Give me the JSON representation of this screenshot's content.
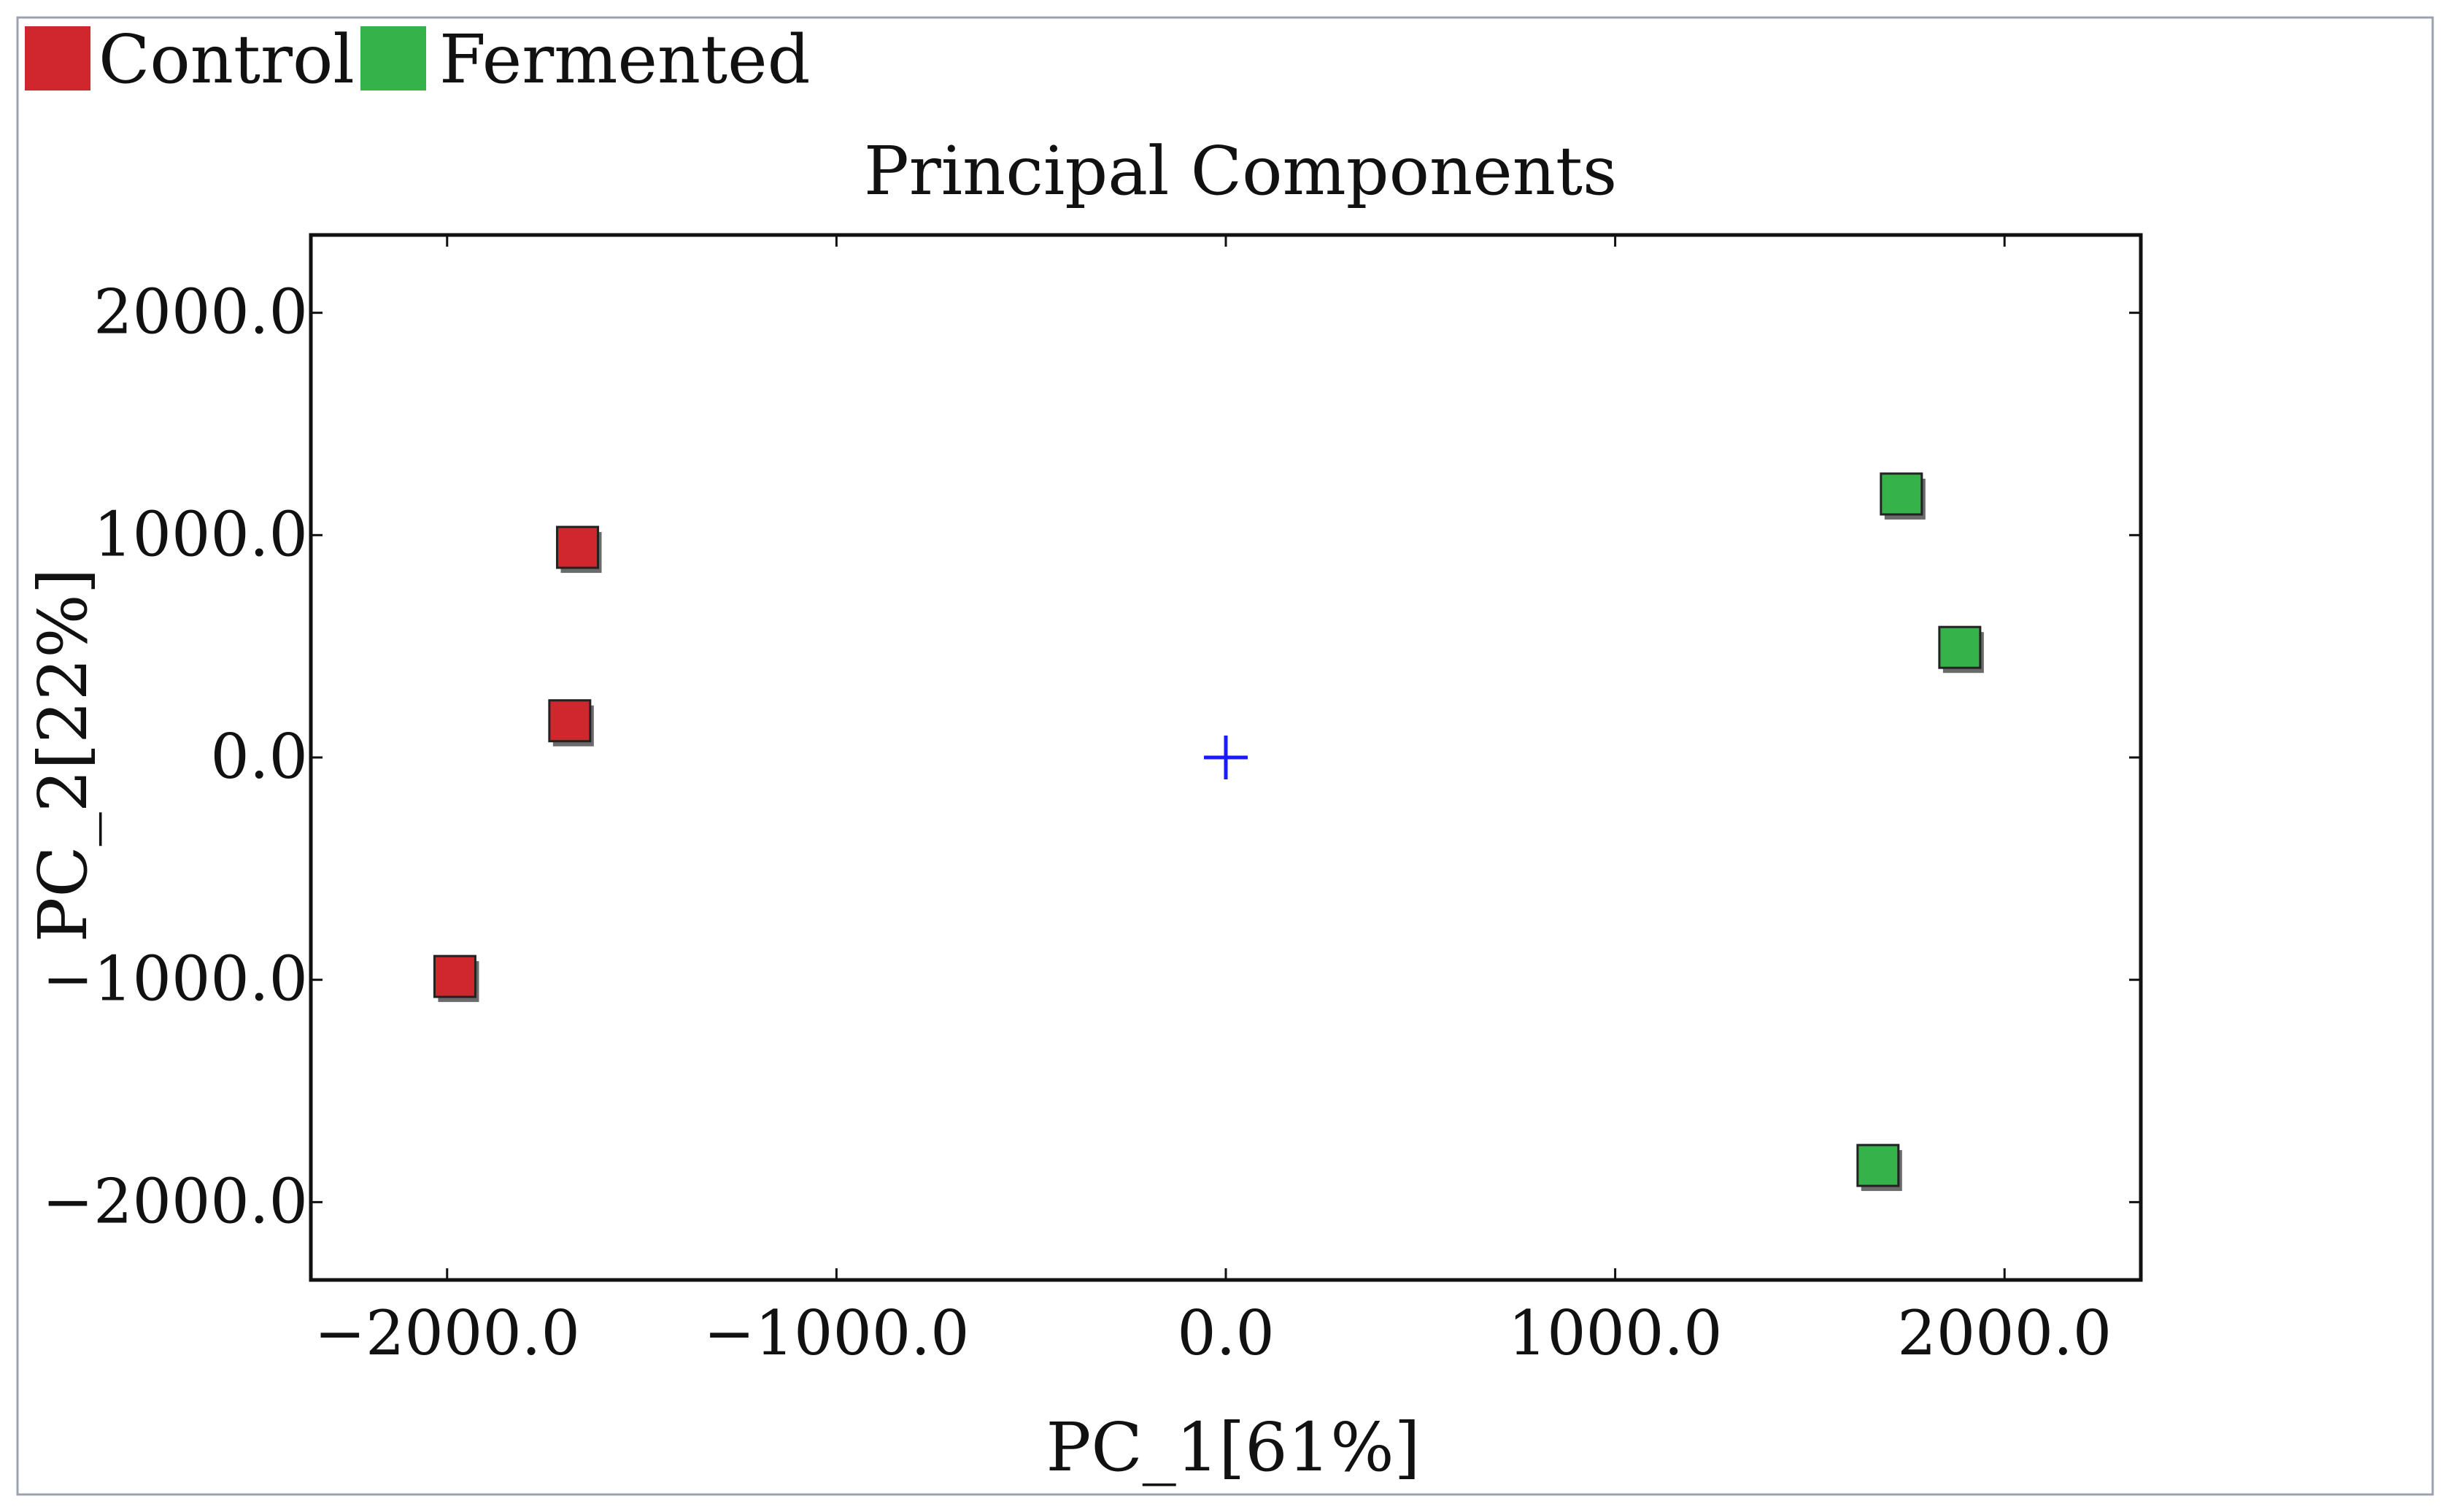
{
  "chart_data": {
    "type": "scatter",
    "title": "Principal Components",
    "xlabel": "PC_1[61%]",
    "ylabel": "PC_2[22%]",
    "xlim": [
      -2350,
      2350
    ],
    "ylim": [
      -2350,
      2350
    ],
    "xticks": [
      -2000,
      -1000,
      0,
      1000,
      2000
    ],
    "xtick_labels": [
      "−2000.0",
      "−1000.0",
      "0.0",
      "1000.0",
      "2000.0"
    ],
    "yticks": [
      2000,
      1000,
      0,
      -1000,
      -2000
    ],
    "ytick_labels": [
      "2000.0",
      "1000.0",
      "0.0",
      "−1000.0",
      "−2000.0"
    ],
    "grid": false,
    "legend_position": "top-left",
    "series": [
      {
        "name": "Control",
        "color": "#d0262e",
        "marker": "square",
        "points": [
          {
            "x": -1665,
            "y": 945
          },
          {
            "x": -1685,
            "y": 165
          },
          {
            "x": -1980,
            "y": -985
          }
        ]
      },
      {
        "name": "Fermented",
        "color": "#35b24a",
        "marker": "square",
        "points": [
          {
            "x": 1735,
            "y": 1185
          },
          {
            "x": 1885,
            "y": 495
          },
          {
            "x": 1675,
            "y": -1835
          }
        ]
      }
    ],
    "centroid": {
      "x": 0,
      "y": 0,
      "marker": "plus",
      "color": "#1a1aff"
    }
  }
}
